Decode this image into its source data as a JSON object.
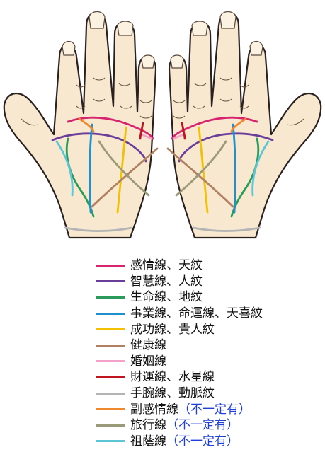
{
  "legend": [
    {
      "label": "感情線、天紋",
      "note": "",
      "color": "#d6246e"
    },
    {
      "label": "智慧線、人紋",
      "note": "",
      "color": "#6a3d9a"
    },
    {
      "label": "生命線、地紋",
      "note": "",
      "color": "#2a9b5a"
    },
    {
      "label": "事業線、命運線、天喜紋",
      "note": "",
      "color": "#1e90d0"
    },
    {
      "label": "成功線、貴人紋",
      "note": "",
      "color": "#f2c200"
    },
    {
      "label": "健康線",
      "note": "",
      "color": "#b08060"
    },
    {
      "label": "婚姻線",
      "note": "",
      "color": "#f5a0c8"
    },
    {
      "label": "財運線、水星線",
      "note": "",
      "color": "#c0141e"
    },
    {
      "label": "手腕線、動脈紋",
      "note": "",
      "color": "#b4b4b4"
    },
    {
      "label": "副感情線",
      "note": "（不一定有）",
      "color": "#f0882e"
    },
    {
      "label": "旅行線",
      "note": "（不一定有）",
      "color": "#9a9a78"
    },
    {
      "label": "祖蔭線",
      "note": "（不一定有）",
      "color": "#5cc6d6"
    }
  ]
}
